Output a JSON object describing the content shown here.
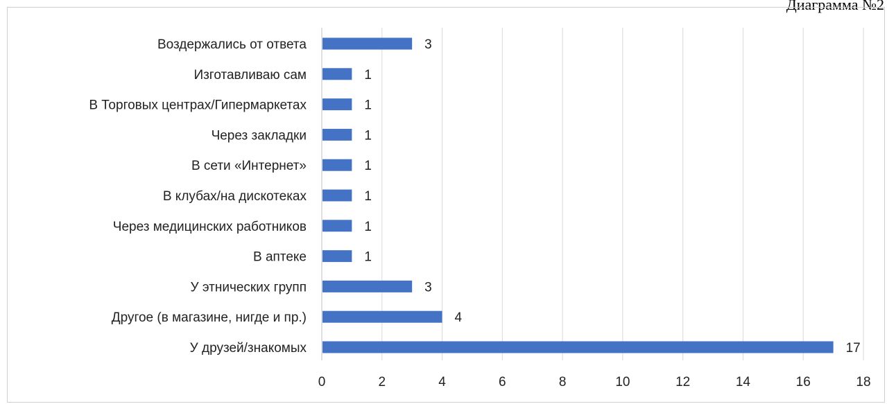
{
  "caption": "Диаграмма №2",
  "chart_data": {
    "type": "bar",
    "orientation": "horizontal",
    "categories": [
      "Воздержались от ответа",
      "Изготавливаю сам",
      "В Торговых центрах/Гипермаркетах",
      "Через закладки",
      "В сети «Интернет»",
      "В клубах/на дискотеках",
      "Через медицинских работников",
      "В аптеке",
      "У этнических групп",
      "Другое (в магазине, нигде и пр.)",
      "У друзей/знакомых"
    ],
    "values": [
      3,
      1,
      1,
      1,
      1,
      1,
      1,
      1,
      3,
      4,
      17
    ],
    "x_ticks": [
      "0",
      "2",
      "4",
      "6",
      "8",
      "10",
      "12",
      "14",
      "16",
      "18"
    ],
    "xlim": [
      0,
      18
    ],
    "grid": "vertical",
    "bar_color": "#4472c4",
    "data_labels": true
  }
}
